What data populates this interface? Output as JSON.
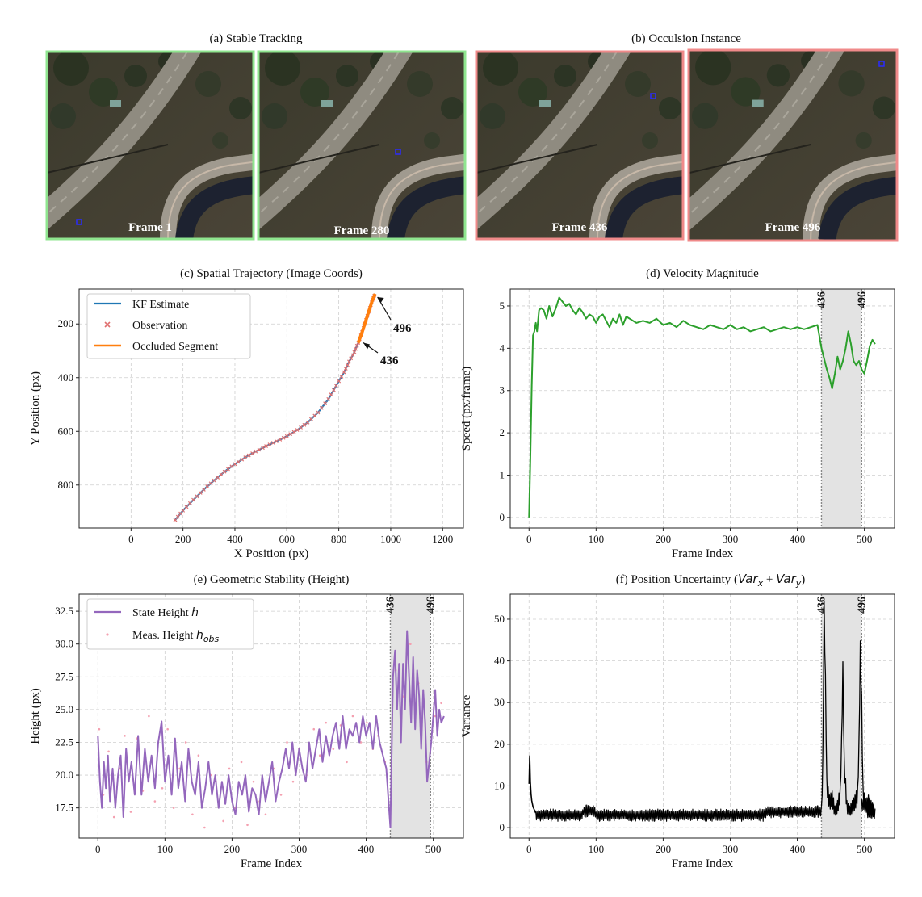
{
  "panels": {
    "a_title": "(a) Stable Tracking",
    "b_title": "(b) Occulsion Instance",
    "frames": [
      {
        "label": "Frame 1",
        "status": "stable",
        "border": "#8fe58f"
      },
      {
        "label": "Frame 280",
        "status": "stable",
        "border": "#8fe58f"
      },
      {
        "label": "Frame 436",
        "status": "occluded",
        "border": "#f08a8a"
      },
      {
        "label": "Frame 496",
        "status": "occluded",
        "border": "#f08a8a"
      }
    ]
  },
  "colors": {
    "kf": "#1f77b4",
    "obs": "#e07070",
    "occluded": "#ff7f0e",
    "speed": "#2ca02c",
    "height": "#9467bd",
    "height_obs": "#f4a0b0",
    "variance": "#000000",
    "shade": "#e3e3e3"
  },
  "chart_data": [
    {
      "id": "c",
      "type": "line",
      "title": "(c) Spatial Trajectory (Image Coords)",
      "xlabel": "X Position (px)",
      "ylabel": "Y Position (px)",
      "xlim": [
        -200,
        1280
      ],
      "ylim": [
        960,
        70
      ],
      "xticks": [
        0,
        200,
        400,
        600,
        800,
        1000,
        1200
      ],
      "yticks": [
        200,
        400,
        600,
        800
      ],
      "grid": true,
      "legend": [
        "KF Estimate",
        "Observation",
        "Occluded Segment"
      ],
      "legend_position": "top-left",
      "trajectory_x": [
        170,
        200,
        240,
        280,
        320,
        360,
        400,
        440,
        480,
        520,
        560,
        600,
        640,
        680,
        720,
        760,
        790,
        820,
        840,
        860,
        875,
        890,
        905,
        920,
        930,
        940
      ],
      "trajectory_y": [
        930,
        895,
        855,
        817,
        783,
        750,
        722,
        697,
        675,
        655,
        637,
        618,
        595,
        567,
        530,
        480,
        430,
        380,
        340,
        305,
        270,
        230,
        185,
        140,
        110,
        88
      ],
      "occluded_from_index": 20,
      "annotations": [
        {
          "label": "496",
          "x": 940,
          "y": 88
        },
        {
          "label": "436",
          "x": 882,
          "y": 258
        }
      ]
    },
    {
      "id": "d",
      "type": "line",
      "title": "(d) Velocity Magnitude",
      "xlabel": "Frame Index",
      "ylabel": "Speed (px/frame)",
      "xlim": [
        -28,
        545
      ],
      "ylim": [
        -0.25,
        5.4
      ],
      "xticks": [
        0,
        100,
        200,
        300,
        400,
        500
      ],
      "yticks": [
        0,
        1,
        2,
        3,
        4,
        5
      ],
      "grid": true,
      "occlusion": [
        436,
        496
      ],
      "occlusion_labels": [
        "436",
        "496"
      ],
      "x": [
        0,
        2,
        4,
        6,
        8,
        10,
        12,
        15,
        18,
        22,
        26,
        30,
        35,
        40,
        45,
        50,
        55,
        60,
        65,
        70,
        75,
        80,
        85,
        90,
        95,
        100,
        105,
        110,
        115,
        120,
        125,
        130,
        135,
        140,
        145,
        150,
        160,
        170,
        180,
        190,
        200,
        210,
        220,
        230,
        240,
        250,
        260,
        270,
        280,
        290,
        300,
        310,
        320,
        330,
        340,
        350,
        360,
        370,
        380,
        390,
        400,
        410,
        420,
        430,
        436,
        440,
        444,
        448,
        452,
        456,
        460,
        464,
        468,
        472,
        476,
        480,
        484,
        488,
        492,
        496,
        500,
        504,
        508,
        512,
        516
      ],
      "y": [
        0,
        1.4,
        3.1,
        4.3,
        4.4,
        4.6,
        4.4,
        4.9,
        4.95,
        4.9,
        4.7,
        5.0,
        4.75,
        4.95,
        5.2,
        5.1,
        5.0,
        5.05,
        4.9,
        4.8,
        4.95,
        4.85,
        4.7,
        4.8,
        4.75,
        4.6,
        4.75,
        4.8,
        4.65,
        4.5,
        4.7,
        4.6,
        4.8,
        4.55,
        4.75,
        4.7,
        4.6,
        4.65,
        4.6,
        4.7,
        4.55,
        4.6,
        4.5,
        4.65,
        4.55,
        4.5,
        4.45,
        4.55,
        4.5,
        4.45,
        4.55,
        4.45,
        4.5,
        4.4,
        4.45,
        4.5,
        4.4,
        4.45,
        4.5,
        4.45,
        4.5,
        4.45,
        4.5,
        4.55,
        4.0,
        3.75,
        3.5,
        3.3,
        3.05,
        3.4,
        3.8,
        3.5,
        3.7,
        4.0,
        4.4,
        4.1,
        3.7,
        3.6,
        3.7,
        3.5,
        3.4,
        3.7,
        4.05,
        4.2,
        4.1
      ]
    },
    {
      "id": "e",
      "type": "line",
      "title": "(e) Geometric Stability (Height)",
      "xlabel": "Frame Index",
      "ylabel": "Height (px)",
      "xlim": [
        -28,
        545
      ],
      "ylim": [
        15.2,
        33.8
      ],
      "xticks": [
        0,
        100,
        200,
        300,
        400,
        500
      ],
      "yticks": [
        17.5,
        20.0,
        22.5,
        25.0,
        27.5,
        30.0,
        32.5
      ],
      "ytick_labels": [
        "17.5",
        "20.0",
        "22.5",
        "25.0",
        "27.5",
        "30.0",
        "32.5"
      ],
      "grid": true,
      "occlusion": [
        436,
        496
      ],
      "occlusion_labels": [
        "436",
        "496"
      ],
      "legend_state": "State Height ",
      "legend_state_math": "h",
      "legend_meas": "Meas. Height ",
      "legend_meas_math": "h",
      "legend_meas_sub": "obs",
      "legend_position": "top-left",
      "x": [
        0,
        3,
        6,
        9,
        12,
        15,
        18,
        22,
        26,
        30,
        34,
        38,
        42,
        46,
        50,
        55,
        60,
        65,
        70,
        75,
        80,
        85,
        90,
        95,
        100,
        105,
        110,
        115,
        120,
        125,
        130,
        135,
        140,
        145,
        150,
        155,
        160,
        165,
        170,
        175,
        180,
        185,
        190,
        195,
        200,
        205,
        210,
        215,
        220,
        225,
        230,
        235,
        240,
        245,
        250,
        255,
        260,
        265,
        270,
        275,
        280,
        285,
        290,
        295,
        300,
        305,
        310,
        315,
        320,
        325,
        330,
        335,
        340,
        345,
        350,
        355,
        360,
        365,
        370,
        375,
        380,
        385,
        390,
        395,
        400,
        405,
        410,
        415,
        420,
        425,
        430,
        436,
        440,
        443,
        446,
        449,
        452,
        455,
        458,
        461,
        464,
        467,
        470,
        473,
        476,
        479,
        482,
        485,
        488,
        491,
        494,
        497,
        500,
        503,
        506,
        509,
        512,
        516
      ],
      "y": [
        23.0,
        19.5,
        17.5,
        21.0,
        19.0,
        21.5,
        18.0,
        20.5,
        17.5,
        20.0,
        21.5,
        16.8,
        22.0,
        19.5,
        21.0,
        18.5,
        23.0,
        18.5,
        22.0,
        19.5,
        21.5,
        19.0,
        22.5,
        24.1,
        19.5,
        21.5,
        18.5,
        22.8,
        19.0,
        21.0,
        18.0,
        22.0,
        19.5,
        18.5,
        21.0,
        17.5,
        19.0,
        21.0,
        18.5,
        20.0,
        17.5,
        19.5,
        17.8,
        20.0,
        18.0,
        17.0,
        19.5,
        18.5,
        20.0,
        17.2,
        19.0,
        18.5,
        17.0,
        20.0,
        18.0,
        19.5,
        21.0,
        18.0,
        19.5,
        20.5,
        22.0,
        20.5,
        22.5,
        20.0,
        22.0,
        20.5,
        19.5,
        22.5,
        20.5,
        22.0,
        23.5,
        21.0,
        23.0,
        21.5,
        23.0,
        24.0,
        22.0,
        24.5,
        22.0,
        23.5,
        23.0,
        24.0,
        22.5,
        24.5,
        23.0,
        24.0,
        22.0,
        24.5,
        22.5,
        21.5,
        20.5,
        16.0,
        27.5,
        29.5,
        25.0,
        28.5,
        22.5,
        28.5,
        25.0,
        31.0,
        27.5,
        24.0,
        29.0,
        23.5,
        28.0,
        26.0,
        22.0,
        26.5,
        24.0,
        19.5,
        21.0,
        22.5,
        24.5,
        26.5,
        23.0,
        25.0,
        24.0,
        24.5
      ],
      "meas_x": [
        2,
        8,
        16,
        24,
        33,
        40,
        49,
        58,
        67,
        76,
        85,
        96,
        104,
        113,
        122,
        131,
        141,
        150,
        159,
        168,
        176,
        187,
        196,
        205,
        214,
        223,
        232,
        241,
        250,
        262,
        273,
        282,
        291,
        300,
        311,
        322,
        331,
        340,
        351,
        362,
        371,
        380,
        392,
        401,
        410,
        418,
        428,
        444,
        455,
        466,
        478,
        490,
        503,
        512
      ],
      "meas_y": [
        23.5,
        18.5,
        21.8,
        16.8,
        20.5,
        23.0,
        17.2,
        22.8,
        18.8,
        24.5,
        18.0,
        19.0,
        23.5,
        17.5,
        20.5,
        22.5,
        17.0,
        21.5,
        16.0,
        20.0,
        19.5,
        16.5,
        20.5,
        17.5,
        21.0,
        16.2,
        19.5,
        18.0,
        17.0,
        20.5,
        18.5,
        22.5,
        19.5,
        22.0,
        20.0,
        23.5,
        21.5,
        24.0,
        22.0,
        23.8,
        21.0,
        24.5,
        22.5,
        24.0,
        22.0,
        23.0,
        21.0,
        28.0,
        26.0,
        30.0,
        27.0,
        21.0,
        24.5,
        25.5
      ]
    },
    {
      "id": "f",
      "type": "line",
      "title": "(f) Position Uncertainty (",
      "title_math_a": "Var",
      "title_sub_a": "x",
      "title_plus": " + ",
      "title_math_b": "Var",
      "title_sub_b": "y",
      "title_end": ")",
      "xlabel": "Frame Index",
      "ylabel": "Variance",
      "xlim": [
        -28,
        545
      ],
      "ylim": [
        -2.5,
        56
      ],
      "xticks": [
        0,
        100,
        200,
        300,
        400,
        500
      ],
      "yticks": [
        0,
        10,
        20,
        30,
        40,
        50
      ],
      "grid": true,
      "occlusion": [
        436,
        496
      ],
      "occlusion_labels": [
        "436",
        "496"
      ],
      "x": [
        0,
        1,
        2,
        3,
        4,
        6,
        10,
        436,
        438,
        440,
        442,
        444,
        448,
        452,
        456,
        460,
        464,
        466,
        468,
        470,
        474,
        478,
        482,
        486,
        490,
        492,
        494,
        496,
        498,
        502,
        506,
        510,
        516
      ],
      "y": [
        10.5,
        17.2,
        11.0,
        8.0,
        6.5,
        5.0,
        3.5,
        4.0,
        15.0,
        52.5,
        35.0,
        10.0,
        6.0,
        7.0,
        4.0,
        5.0,
        8.0,
        20.0,
        38.0,
        15.0,
        5.0,
        4.0,
        5.0,
        6.0,
        8.0,
        20.0,
        43.0,
        30.0,
        8.0,
        5.0,
        6.0,
        5.0,
        4.0
      ],
      "noise_mean": 3.0,
      "noise_amplitude": 1.5
    }
  ]
}
